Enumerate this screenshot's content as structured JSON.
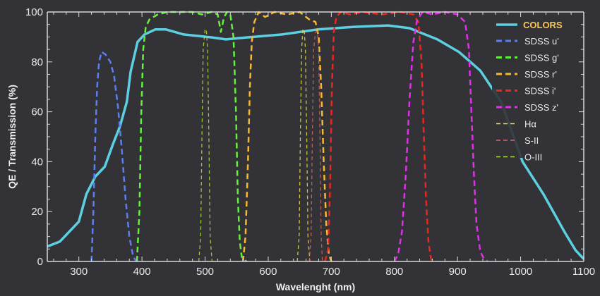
{
  "chart_data": {
    "type": "line",
    "title": "",
    "xlabel": "Wavelenght (nm)",
    "ylabel": "QE / Transmission (%)",
    "xlim": [
      250,
      1100
    ],
    "ylim": [
      0,
      100
    ],
    "xticks": [
      300,
      400,
      500,
      600,
      700,
      800,
      900,
      1000,
      1100
    ],
    "yticks": [
      0,
      20,
      40,
      60,
      80,
      100
    ],
    "grid": false,
    "legend": {
      "title": "COLORS",
      "placement": "top-right"
    },
    "series": [
      {
        "name": "COLORS",
        "color": "#5ccfe0",
        "style": "solid",
        "x": [
          250,
          270,
          300,
          312,
          326,
          341,
          354,
          365,
          376,
          382,
          393,
          404,
          421,
          438,
          466,
          511,
          533,
          566,
          622,
          678,
          734,
          790,
          824,
          868,
          902,
          936,
          969,
          1003,
          1036,
          1070,
          1087,
          1100
        ],
        "y": [
          6,
          8,
          16,
          27,
          34,
          38,
          47,
          54,
          64,
          76,
          88,
          91,
          93,
          93,
          91,
          89.8,
          89,
          89.8,
          91,
          93,
          94,
          94.6,
          93.5,
          89,
          84,
          76.5,
          64,
          40,
          27,
          11.6,
          4.5,
          1
        ]
      },
      {
        "name": "SDSS u'",
        "color": "#5b7ff0",
        "style": "dash",
        "x": [
          320,
          323,
          326,
          329,
          332,
          336,
          342,
          350,
          356,
          362,
          368,
          374,
          380,
          386,
          391
        ],
        "y": [
          0,
          20,
          50,
          70,
          80,
          84,
          83,
          80,
          74,
          62,
          45,
          25,
          10,
          2,
          0
        ]
      },
      {
        "name": "SDSS g'",
        "color": "#63f23a",
        "style": "dash",
        "x": [
          392,
          396,
          399,
          402,
          406,
          412,
          425,
          440,
          460,
          480,
          495,
          510,
          520,
          525,
          530,
          535,
          540,
          545,
          549,
          552,
          555,
          558,
          562,
          566
        ],
        "y": [
          0,
          20,
          60,
          85,
          94,
          97,
          99,
          100,
          100,
          100,
          99,
          100,
          99,
          92,
          98,
          100,
          99,
          90,
          60,
          25,
          8,
          2,
          0.5,
          0
        ]
      },
      {
        "name": "SDSS r'",
        "color": "#f5b830",
        "style": "dash",
        "x": [
          560,
          564,
          568,
          571,
          574,
          578,
          585,
          595,
          610,
          630,
          650,
          665,
          675,
          680,
          684,
          688,
          692,
          696,
          700
        ],
        "y": [
          0,
          10,
          40,
          70,
          88,
          96,
          100,
          98,
          100,
          99,
          100,
          97,
          96,
          90,
          70,
          40,
          15,
          3,
          0
        ]
      },
      {
        "name": "SDSS i'",
        "color": "#e8281e",
        "style": "dash",
        "x": [
          690,
          695,
          698,
          701,
          704,
          708,
          715,
          730,
          750,
          780,
          810,
          830,
          838,
          843,
          846,
          850,
          854,
          858,
          862
        ],
        "y": [
          0,
          5,
          30,
          70,
          92,
          98,
          100,
          99,
          100,
          99,
          100,
          99,
          96,
          80,
          55,
          25,
          8,
          1,
          0
        ]
      },
      {
        "name": "SDSS z'",
        "color": "#e030e8",
        "style": "dash",
        "x": [
          800,
          806,
          812,
          818,
          824,
          830,
          836,
          845,
          860,
          880,
          900,
          912,
          918,
          922,
          926,
          930,
          936,
          942,
          948
        ],
        "y": [
          0,
          3,
          12,
          35,
          65,
          88,
          97,
          100,
          99,
          100,
          99,
          96,
          85,
          60,
          35,
          15,
          4,
          1,
          0
        ]
      },
      {
        "name": "Hα",
        "color": "#e8e040",
        "style": "dash",
        "x": [
          646,
          649,
          651,
          653,
          655,
          657,
          659,
          661,
          663,
          666
        ],
        "y": [
          0,
          10,
          50,
          85,
          93,
          93,
          85,
          50,
          10,
          0
        ]
      },
      {
        "name": "S-II",
        "color": "#d06868",
        "style": "dash",
        "x": [
          665,
          668,
          670,
          672,
          675,
          678,
          680,
          682,
          684,
          686
        ],
        "y": [
          0,
          10,
          50,
          85,
          92,
          92,
          85,
          50,
          10,
          0
        ]
      },
      {
        "name": "O-III",
        "color": "#b0e040",
        "style": "dash",
        "x": [
          490,
          493,
          495,
          497,
          500,
          502,
          504,
          506,
          508,
          511
        ],
        "y": [
          0,
          10,
          50,
          85,
          93,
          93,
          85,
          50,
          10,
          0
        ]
      }
    ]
  }
}
